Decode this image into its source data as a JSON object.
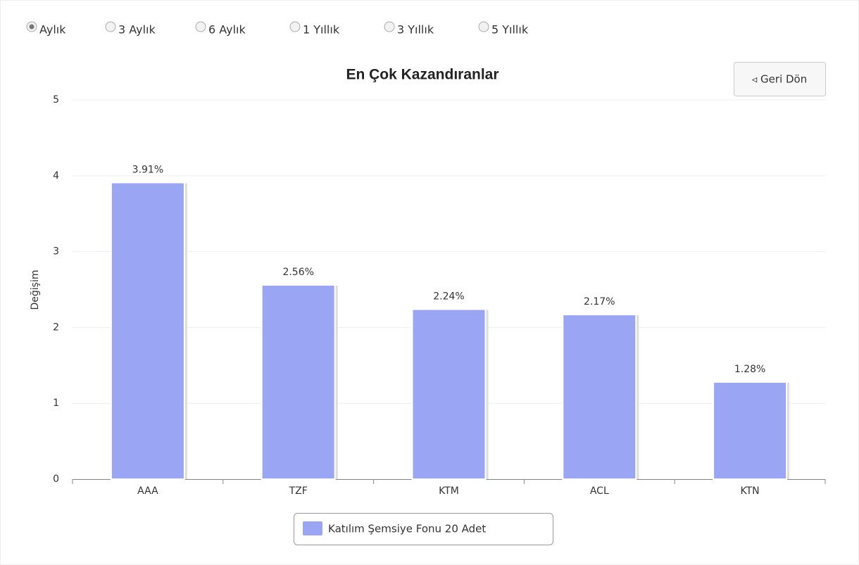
{
  "controls": {
    "options": [
      "Aylık",
      "3 Aylık",
      "6 Aylık",
      "1 Yıllık",
      "3 Yıllık",
      "5 Yıllık"
    ],
    "selected": 0,
    "back_button": "◃ Geri Dön"
  },
  "chart_data": {
    "type": "bar",
    "title": "En Çok Kazandıranlar",
    "y_label": "Değişim",
    "categories": [
      "AAA",
      "TZF",
      "KTM",
      "ACL",
      "KTN"
    ],
    "series": [
      {
        "name": "Katılım Şemsiye Fonu 20 Adet",
        "color": "#9aa5f3",
        "values": [
          3.91,
          2.56,
          2.24,
          2.17,
          1.28
        ],
        "value_labels": [
          "3.91%",
          "2.56%",
          "2.24%",
          "2.17%",
          "1.28%"
        ]
      }
    ],
    "ylim": [
      0,
      5
    ],
    "yticks": [
      0,
      1,
      2,
      3,
      4,
      5
    ],
    "grid": true,
    "legend": "bottom"
  }
}
